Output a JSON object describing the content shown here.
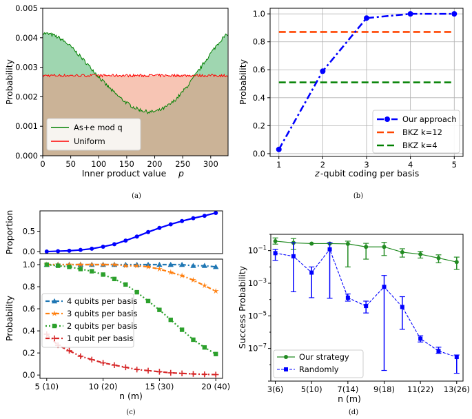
{
  "chart_data": [
    {
      "panel": "a",
      "caption": "(a)",
      "type": "line",
      "xlabel": "Inner product value p",
      "ylabel": "Probability",
      "xlim": [
        0,
        331
      ],
      "ylim": [
        0,
        0.005
      ],
      "xticks": [
        "0",
        "50",
        "100",
        "150",
        "200",
        "250",
        "300"
      ],
      "yticks": [
        "0.000",
        "0.001",
        "0.002",
        "0.003",
        "0.004",
        "0.005"
      ],
      "legend_position": "lower-left",
      "series": [
        {
          "name": "As+e mod q",
          "color": "#008000",
          "x": [
            0,
            10,
            20,
            30,
            40,
            50,
            60,
            70,
            80,
            90,
            100,
            110,
            120,
            130,
            140,
            150,
            160,
            170,
            180,
            190,
            200,
            210,
            220,
            230,
            240,
            250,
            260,
            270,
            280,
            290,
            300,
            310,
            320,
            330
          ],
          "y": [
            0.00415,
            0.00413,
            0.00408,
            0.00399,
            0.00386,
            0.0037,
            0.00351,
            0.00331,
            0.0031,
            0.0029,
            0.00268,
            0.00247,
            0.00228,
            0.0021,
            0.00194,
            0.00179,
            0.00167,
            0.00158,
            0.00152,
            0.00148,
            0.0015,
            0.00155,
            0.00165,
            0.00178,
            0.00196,
            0.00217,
            0.0024,
            0.00266,
            0.00293,
            0.0032,
            0.00347,
            0.00373,
            0.00396,
            0.00412
          ]
        },
        {
          "name": "Uniform",
          "color": "#ff0000",
          "x": [
            0,
            330
          ],
          "y": [
            0.00272,
            0.00272
          ]
        }
      ]
    },
    {
      "panel": "b",
      "caption": "(b)",
      "type": "line",
      "xlabel": "z-qubit coding per basis",
      "ylabel": "Probability",
      "xlim": [
        0.8,
        5.2
      ],
      "ylim": [
        -0.02,
        1.04
      ],
      "xticks": [
        "1",
        "2",
        "3",
        "4",
        "5"
      ],
      "yticks": [
        "0.0",
        "0.2",
        "0.4",
        "0.6",
        "0.8",
        "1.0"
      ],
      "legend_position": "lower-right",
      "series": [
        {
          "name": "Our approach",
          "color": "#0000ff",
          "x": [
            1,
            2,
            3,
            4,
            5
          ],
          "y": [
            0.03,
            0.59,
            0.97,
            1.0,
            1.0
          ]
        },
        {
          "name": "BKZ k=12",
          "color": "#ff4500",
          "x": [
            1,
            5
          ],
          "y": [
            0.87,
            0.87
          ]
        },
        {
          "name": "BKZ k=4",
          "color": "#008000",
          "x": [
            1,
            5
          ],
          "y": [
            0.51,
            0.51
          ]
        }
      ]
    },
    {
      "panel": "c-top",
      "type": "line",
      "ylabel": "Proportion",
      "ylim": [
        -0.05,
        1.0
      ],
      "yticks": [
        "0.0",
        "0.5"
      ],
      "series": [
        {
          "name": "",
          "color": "#0000ff",
          "x": [
            5,
            6,
            7,
            8,
            9,
            10,
            11,
            12,
            13,
            14,
            15,
            16,
            17,
            18,
            19,
            20
          ],
          "y": [
            0.0,
            0.01,
            0.02,
            0.04,
            0.07,
            0.12,
            0.18,
            0.27,
            0.37,
            0.48,
            0.58,
            0.67,
            0.75,
            0.82,
            0.88,
            0.95
          ]
        }
      ]
    },
    {
      "panel": "c",
      "caption": "(c)",
      "type": "line",
      "xlabel": "n (m)",
      "ylabel": "Probability",
      "xlim": [
        4.4,
        20.6
      ],
      "ylim": [
        -0.03,
        1.05
      ],
      "xticks": [
        "5 (10)",
        "10 (20)",
        "15 (30)",
        "20 (40)"
      ],
      "yticks": [
        "0.0",
        "0.2",
        "0.4",
        "0.6",
        "0.8",
        "1.0"
      ],
      "legend_position": "lower-left",
      "x": [
        5,
        6,
        7,
        8,
        9,
        10,
        11,
        12,
        13,
        14,
        15,
        16,
        17,
        18,
        19,
        20
      ],
      "series": [
        {
          "name": "4 qubits per basis",
          "color": "#1f77b4",
          "marker": "triangle",
          "y": [
            1.0,
            1.0,
            1.0,
            1.0,
            1.0,
            1.0,
            1.0,
            1.0,
            1.0,
            1.0,
            1.0,
            1.0,
            1.0,
            0.99,
            0.99,
            0.98
          ]
        },
        {
          "name": "3 qubits per basis",
          "color": "#ff7f0e",
          "marker": "star",
          "y": [
            1.0,
            1.0,
            1.0,
            1.0,
            1.0,
            1.0,
            1.0,
            0.99,
            0.99,
            0.98,
            0.96,
            0.93,
            0.9,
            0.86,
            0.81,
            0.76
          ]
        },
        {
          "name": "2 qubits per basis",
          "color": "#2ca02c",
          "marker": "square",
          "y": [
            1.0,
            0.99,
            0.98,
            0.96,
            0.94,
            0.91,
            0.87,
            0.82,
            0.75,
            0.67,
            0.59,
            0.5,
            0.41,
            0.32,
            0.25,
            0.19
          ]
        },
        {
          "name": "1 qubit per basis",
          "color": "#d62728",
          "marker": "plus",
          "y": [
            0.37,
            0.27,
            0.22,
            0.17,
            0.14,
            0.11,
            0.09,
            0.07,
            0.05,
            0.04,
            0.03,
            0.02,
            0.015,
            0.01,
            0.006,
            0.004
          ]
        }
      ]
    },
    {
      "panel": "d",
      "caption": "(d)",
      "type": "line",
      "xlabel": "n (m)",
      "ylabel": "Success Probability",
      "yscale": "log",
      "xlim": [
        2.75,
        13.35
      ],
      "ylim": [
        1e-09,
        1.0
      ],
      "xticks": [
        "3(6)",
        "5(10)",
        "7(14)",
        "9(18)",
        "11(22)",
        "13(26)"
      ],
      "xtick_values": [
        3,
        5,
        7,
        9,
        11,
        13
      ],
      "yticks": [
        "10^-1",
        "10^-3",
        "10^-5",
        "10^-7"
      ],
      "legend_position": "lower-left",
      "series": [
        {
          "name": "Our strategy",
          "color": "#228b22",
          "marker": "circle",
          "x": [
            3,
            4,
            5,
            6,
            7,
            8,
            9,
            10,
            11,
            12,
            13
          ],
          "y": [
            0.38,
            0.3,
            0.27,
            0.27,
            0.26,
            0.17,
            0.17,
            0.08,
            0.06,
            0.035,
            0.02
          ],
          "err_lo": [
            0.25,
            0.12,
            0.0,
            0.0,
            0.01,
            0.03,
            0.05,
            0.04,
            0.035,
            0.018,
            0.007
          ],
          "err_hi": [
            0.6,
            0.55,
            0.0,
            0.0,
            0.38,
            0.28,
            0.32,
            0.13,
            0.09,
            0.055,
            0.04
          ]
        },
        {
          "name": "Randomly",
          "color": "#0000ff",
          "marker": "square",
          "x": [
            3,
            4,
            5,
            6,
            7,
            8,
            9,
            10,
            11,
            12,
            13
          ],
          "y": [
            0.07,
            0.045,
            0.0045,
            0.12,
            0.00013,
            4e-05,
            0.0006,
            3.5e-05,
            4e-07,
            7e-08,
            3e-08
          ],
          "err_lo": [
            0.025,
            0.0003,
            0.00013,
            0.00012,
            8e-05,
            1.5e-05,
            4.5e-09,
            1.5e-06,
            2.5e-07,
            5e-08,
            3e-09
          ],
          "err_hi": [
            0.12,
            0.3,
            0.01,
            0.3,
            0.00022,
            8e-05,
            0.003,
            0.00015,
            6e-07,
            1.2e-07,
            4e-08
          ]
        }
      ]
    }
  ]
}
